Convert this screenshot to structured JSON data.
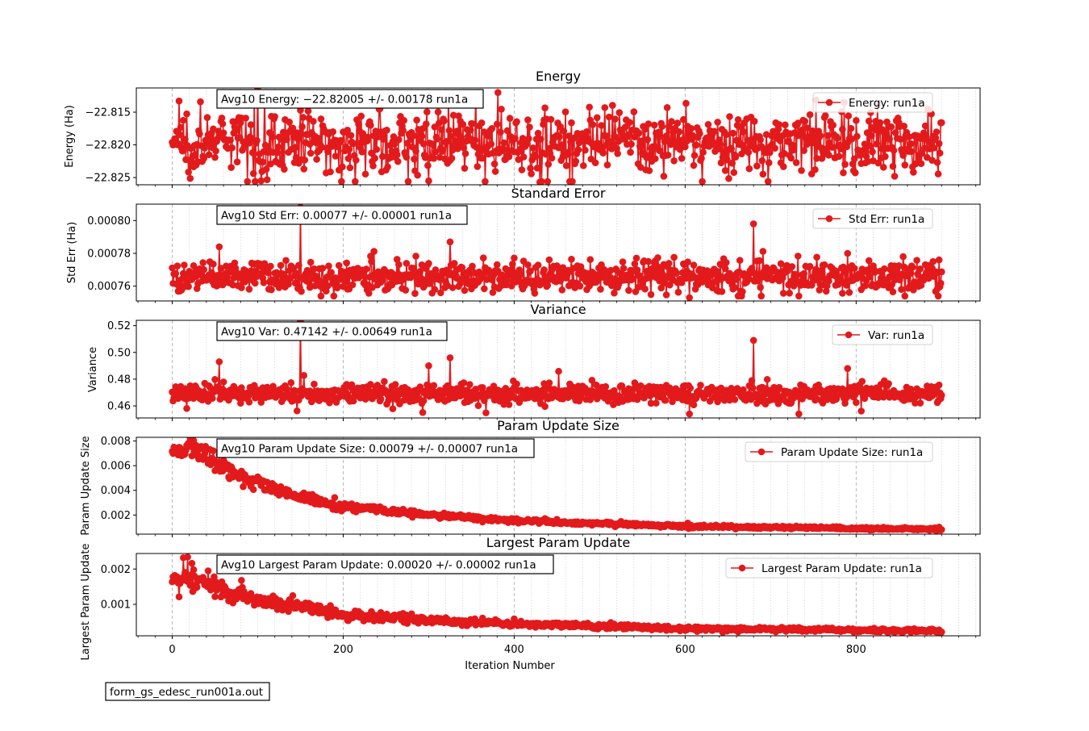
{
  "footer_label": "form_gs_edesc_run001a.out",
  "shared_xlabel": "Iteration Number",
  "shared_xticks": [
    0,
    200,
    400,
    600,
    800
  ],
  "series_color": "#e31a1c",
  "chart_data": [
    {
      "type": "line",
      "title": "Energy",
      "ylabel": "Energy (Ha)",
      "xlim": [
        -42,
        945
      ],
      "ylim": [
        -22.8261,
        -22.8113
      ],
      "yticks": [
        -22.815,
        -22.82,
        -22.825
      ],
      "ytick_labels": [
        "−22.815",
        "−22.820",
        "−22.825"
      ],
      "annotation": "Avg10 Energy: −22.82005 +/- 0.00178  run1a",
      "legend_label": "Energy: run1a",
      "legend_loc": "top-right",
      "grid": "vertical",
      "profile": {
        "kind": "noise",
        "center": -22.8196,
        "spread": 0.0022,
        "min": -22.8256,
        "max": -22.812
      },
      "spikes": [
        [
          8,
          -22.8133
        ],
        [
          100,
          -22.8113
        ],
        [
          150,
          -22.8147
        ],
        [
          430,
          -22.8257
        ],
        [
          575,
          -22.8248
        ],
        [
          845,
          -22.8248
        ]
      ],
      "x": [
        0,
        900
      ]
    },
    {
      "type": "line",
      "title": "Standard Error",
      "ylabel": "Std Err (Ha)",
      "xlim": [
        -42,
        945
      ],
      "ylim": [
        0.000751,
        0.00081
      ],
      "yticks": [
        0.0008,
        0.00078,
        0.00076
      ],
      "ytick_labels": [
        "0.00080",
        "0.00078",
        "0.00076"
      ],
      "annotation": "Avg10 Std Err: 0.00077 +/- 0.00001  run1a",
      "legend_label": "Std Err: run1a",
      "legend_loc": "top-right",
      "grid": "vertical",
      "profile": {
        "kind": "noise",
        "center": 0.000766,
        "spread": 4.5e-06,
        "min": 0.000754,
        "max": 0.00081
      },
      "spikes": [
        [
          150,
          0.000808
        ],
        [
          55,
          0.000784
        ],
        [
          325,
          0.000787
        ],
        [
          680,
          0.000798
        ],
        [
          605,
          0.000753
        ],
        [
          733,
          0.000754
        ],
        [
          790,
          0.00078
        ]
      ],
      "x": [
        0,
        900
      ]
    },
    {
      "type": "line",
      "title": "Variance",
      "ylabel": "Variance",
      "xlim": [
        -42,
        945
      ],
      "ylim": [
        0.451,
        0.524
      ],
      "yticks": [
        0.52,
        0.5,
        0.48,
        0.46
      ],
      "ytick_labels": [
        "0.52",
        "0.50",
        "0.48",
        "0.46"
      ],
      "annotation": "Avg10 Var: 0.47142 +/- 0.00649  run1a",
      "legend_label": "Var: run1a",
      "legend_loc": "top-right",
      "grid": "vertical",
      "profile": {
        "kind": "noise",
        "center": 0.469,
        "spread": 0.0035,
        "min": 0.4535,
        "max": 0.524
      },
      "spikes": [
        [
          150,
          0.523
        ],
        [
          55,
          0.493
        ],
        [
          325,
          0.496
        ],
        [
          680,
          0.509
        ],
        [
          605,
          0.454
        ],
        [
          733,
          0.454
        ],
        [
          790,
          0.488
        ],
        [
          300,
          0.49
        ]
      ],
      "x": [
        0,
        900
      ]
    },
    {
      "type": "line",
      "title": "Param Update Size",
      "ylabel": "Param Update Size",
      "xlim": [
        -42,
        945
      ],
      "ylim": [
        0.00045,
        0.0083
      ],
      "yticks": [
        0.008,
        0.006,
        0.004,
        0.002
      ],
      "ytick_labels": [
        "0.008",
        "0.006",
        "0.004",
        "0.002"
      ],
      "annotation": "Avg10 Param Update Size: 0.00079 +/- 0.00007  run1a",
      "legend_label": "Param Update Size: run1a",
      "legend_loc": "top-right",
      "grid": "vertical",
      "profile": {
        "kind": "decay",
        "points": [
          [
            0,
            0.007
          ],
          [
            25,
            0.0075
          ],
          [
            50,
            0.0062
          ],
          [
            100,
            0.0045
          ],
          [
            150,
            0.0034
          ],
          [
            200,
            0.0027
          ],
          [
            300,
            0.002
          ],
          [
            400,
            0.00155
          ],
          [
            500,
            0.0013
          ],
          [
            600,
            0.0011
          ],
          [
            700,
            0.001
          ],
          [
            800,
            0.0009
          ],
          [
            900,
            0.00085
          ]
        ],
        "rel_noise": 0.06
      },
      "spikes": [
        [
          24,
          0.0079
        ],
        [
          2,
          0.0075
        ],
        [
          40,
          0.0073
        ]
      ],
      "x": [
        0,
        900
      ]
    },
    {
      "type": "line",
      "title": "Largest Param Update",
      "ylabel": "Largest Param Update",
      "xlim": [
        -42,
        945
      ],
      "ylim": [
        0.00011,
        0.00244
      ],
      "yticks": [
        0.002,
        0.001
      ],
      "ytick_labels": [
        "0.002",
        "0.001"
      ],
      "annotation": "Avg10 Largest Param Update: 0.00020 +/- 0.00002  run1a",
      "legend_label": "Largest Param Update: run1a",
      "legend_loc": "top-right",
      "grid": "vertical",
      "profile": {
        "kind": "decay",
        "points": [
          [
            0,
            0.00165
          ],
          [
            25,
            0.00175
          ],
          [
            50,
            0.0015
          ],
          [
            100,
            0.0011
          ],
          [
            150,
            0.00095
          ],
          [
            200,
            0.0007
          ],
          [
            300,
            0.00055
          ],
          [
            400,
            0.00045
          ],
          [
            500,
            0.00038
          ],
          [
            600,
            0.00032
          ],
          [
            700,
            0.0003
          ],
          [
            800,
            0.00027
          ],
          [
            900,
            0.00025
          ]
        ],
        "rel_noise": 0.1
      },
      "spikes": [
        [
          13,
          0.00232
        ],
        [
          18,
          0.00234
        ],
        [
          3,
          0.00182
        ],
        [
          50,
          0.00122
        ]
      ],
      "x": [
        0,
        900
      ]
    }
  ]
}
